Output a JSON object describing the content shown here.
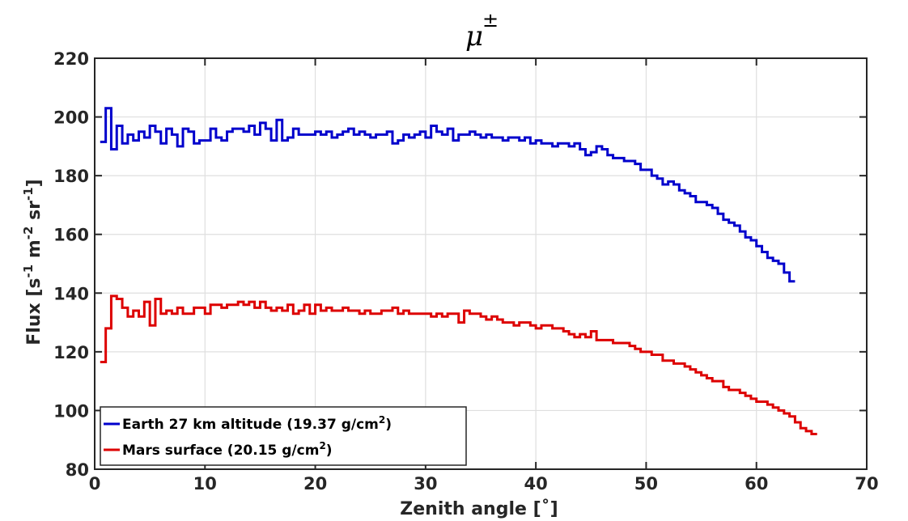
{
  "chart_data": {
    "type": "line",
    "step": true,
    "title": "μ",
    "title_sup": "±",
    "xlabel": "Zenith angle [˚]",
    "ylabel": "Flux [s",
    "ylabel_parts": [
      "Flux [s",
      "-1",
      " m",
      "-2",
      " sr",
      "-1",
      "]"
    ],
    "xlim": [
      0,
      70
    ],
    "ylim": [
      80,
      220
    ],
    "xticks": [
      0,
      10,
      20,
      30,
      40,
      50,
      60,
      70
    ],
    "yticks": [
      80,
      100,
      120,
      140,
      160,
      180,
      200,
      220
    ],
    "xtick_labels": [
      "0",
      "10",
      "20",
      "30",
      "40",
      "50",
      "60",
      "70"
    ],
    "ytick_labels": [
      "80",
      "100",
      "120",
      "140",
      "160",
      "180",
      "200",
      "220"
    ],
    "grid": true,
    "legend_position": "bottom-left",
    "bin_width": 0.5,
    "x_start": 0.5,
    "series": [
      {
        "name": "Earth 27 km altitude (19.37 g/cm",
        "name_sup": "2",
        "name_end": ")",
        "color": "#0000cc",
        "values": [
          191.5,
          203,
          189,
          197,
          191,
          194,
          192,
          195,
          193,
          197,
          195,
          191,
          196,
          194,
          190,
          196,
          195,
          191,
          192,
          192,
          196,
          193,
          192,
          195,
          196,
          196,
          195,
          197,
          194,
          198,
          196,
          192,
          199,
          192,
          193,
          196,
          194,
          194,
          194,
          195,
          194,
          195,
          193,
          194,
          195,
          196,
          194,
          195,
          194,
          193,
          194,
          194,
          195,
          191,
          192,
          194,
          193,
          194,
          195,
          193,
          197,
          195,
          194,
          196,
          192,
          194,
          194,
          195,
          194,
          193,
          194,
          193,
          193,
          192,
          193,
          193,
          192,
          193,
          191,
          192,
          191,
          191,
          190,
          191,
          191,
          190,
          191,
          189,
          187,
          188,
          190,
          189,
          187,
          186,
          186,
          185,
          185,
          184,
          182,
          182,
          180,
          179,
          177,
          178,
          177,
          175,
          174,
          173,
          171,
          171,
          170,
          169,
          167,
          165,
          164,
          163,
          161,
          159,
          158,
          156,
          154,
          152,
          151,
          150,
          147,
          144
        ]
      },
      {
        "name": "Mars surface (20.15 g/cm",
        "name_sup": "2",
        "name_end": ")",
        "color": "#dd0000",
        "values": [
          116.5,
          128,
          139,
          138,
          135,
          132,
          134,
          132,
          137,
          129,
          138,
          133,
          134,
          133,
          135,
          133,
          133,
          135,
          135,
          133,
          136,
          136,
          135,
          136,
          136,
          137,
          136,
          137,
          135,
          137,
          135,
          134,
          135,
          134,
          136,
          133,
          134,
          136,
          133,
          136,
          134,
          135,
          134,
          134,
          135,
          134,
          134,
          133,
          134,
          133,
          133,
          134,
          134,
          135,
          133,
          134,
          133,
          133,
          133,
          133,
          132,
          133,
          132,
          133,
          133,
          130,
          134,
          133,
          133,
          132,
          131,
          132,
          131,
          130,
          130,
          129,
          130,
          130,
          129,
          128,
          129,
          129,
          128,
          128,
          127,
          126,
          125,
          126,
          125,
          127,
          124,
          124,
          124,
          123,
          123,
          123,
          122,
          121,
          120,
          120,
          119,
          119,
          117,
          117,
          116,
          116,
          115,
          114,
          113,
          112,
          111,
          110,
          110,
          108,
          107,
          107,
          106,
          105,
          104,
          103,
          103,
          102,
          101,
          100,
          99,
          98,
          96,
          94,
          93,
          92
        ]
      }
    ]
  }
}
